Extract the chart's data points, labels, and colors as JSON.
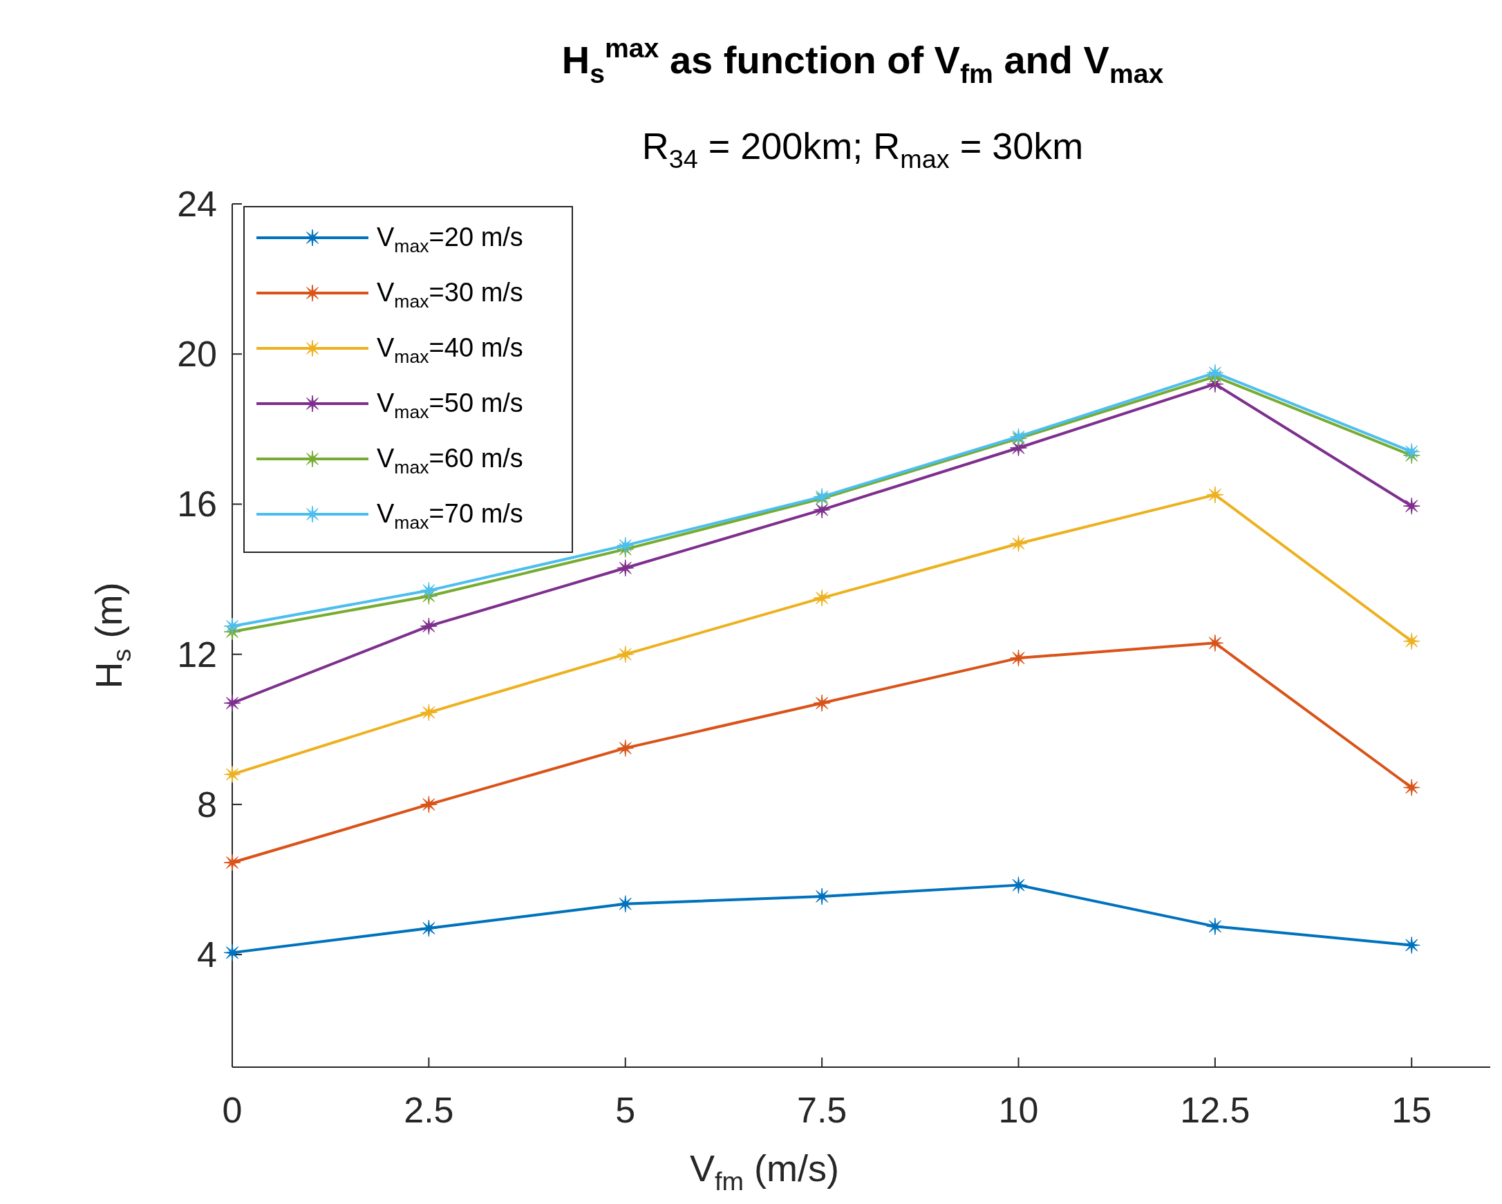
{
  "chart_data": {
    "type": "line",
    "title": "H$_{s}$$^{max}$ as function of V$_{fm}$ and V$_{max}$",
    "subtitle": "R$_{34}$ = 200km; R$_{max}$ = 30km",
    "xlabel": "V$_{fm}$ (m/s)",
    "ylabel": "H$_{s}$ (m)",
    "x": [
      0,
      2.5,
      5,
      7.5,
      10,
      12.5,
      15
    ],
    "series": [
      {
        "name": "V$_{max}$=20 m/s",
        "color": "#0072bd",
        "values": [
          4.05,
          4.7,
          5.35,
          5.55,
          5.85,
          4.75,
          4.25
        ]
      },
      {
        "name": "V$_{max}$=30 m/s",
        "color": "#d95319",
        "values": [
          6.45,
          8.0,
          9.5,
          10.7,
          11.9,
          12.3,
          8.45
        ]
      },
      {
        "name": "V$_{max}$=40 m/s",
        "color": "#edb120",
        "values": [
          8.8,
          10.45,
          12.0,
          13.5,
          14.95,
          16.25,
          12.35
        ]
      },
      {
        "name": "V$_{max}$=50 m/s",
        "color": "#7e2f8e",
        "values": [
          10.7,
          12.75,
          14.3,
          15.85,
          17.5,
          19.2,
          15.95
        ]
      },
      {
        "name": "V$_{max}$=60 m/s",
        "color": "#77ac30",
        "values": [
          12.6,
          13.55,
          14.8,
          16.15,
          17.75,
          19.4,
          17.3
        ]
      },
      {
        "name": "V$_{max}$=70 m/s",
        "color": "#4dbeee",
        "values": [
          12.75,
          13.7,
          14.9,
          16.2,
          17.8,
          19.5,
          17.4
        ]
      }
    ],
    "xlim": [
      0,
      16
    ],
    "xticks": [
      0,
      2.5,
      5,
      7.5,
      10,
      12.5,
      15
    ],
    "ylim": [
      1,
      24
    ],
    "yticks": [
      4,
      8,
      12,
      16,
      20,
      24
    ],
    "grid": false,
    "legend": "top left",
    "marker": "star",
    "line_style": "solid"
  }
}
